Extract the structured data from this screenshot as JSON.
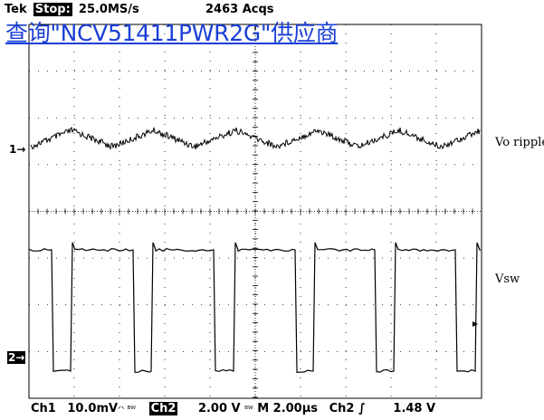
{
  "header": {
    "brand": "Tek",
    "state": "Stop:",
    "sample_rate": "25.0MS/s",
    "acquisitions": "2463 Acqs"
  },
  "overlay_link": "查询\"NCV51411PWR2G\"供应商",
  "traces": [
    {
      "id": "ch1",
      "label": "Vo ripple",
      "marker": "1→"
    },
    {
      "id": "ch2",
      "label": "Vsw",
      "marker": "2→"
    }
  ],
  "footer": {
    "ch1_label": "Ch1",
    "ch1_scale": "10.0mV",
    "ch1_coupling": "ᐟᐠ ᴮᵂ",
    "ch2_label": "Ch2",
    "ch2_scale": "2.00 V",
    "ch2_bw": "ᴮᵂ",
    "timebase": "M 2.00µs",
    "trigger_source": "Ch2",
    "trigger_slope": "∫",
    "trigger_level": "1.48 V"
  },
  "colors": {
    "trace": "#000000",
    "link": "#1a3fd6",
    "background": "#ffffff"
  }
}
